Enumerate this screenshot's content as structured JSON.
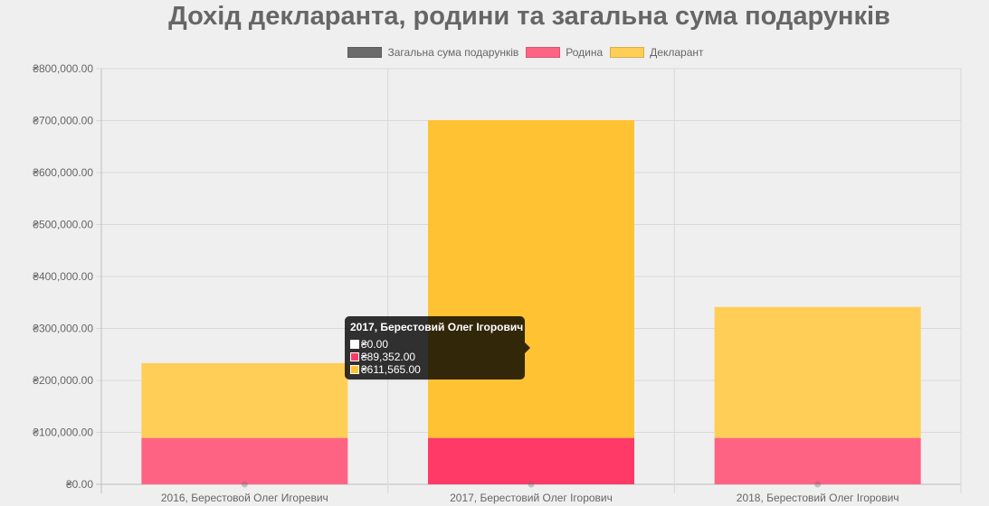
{
  "chart_data": {
    "type": "bar",
    "stacked": true,
    "title": "Дохід декларанта, родини та загальна сума подарунків",
    "categories": [
      "2016, Берестовой Олег Игоревич",
      "2017, Берестовий Олег Ігорович",
      "2018, Берестовий Олег Ігорович"
    ],
    "series": [
      {
        "name": "Загальна сума подарунків",
        "color": "#6b6b6b",
        "values": [
          0,
          0,
          0
        ]
      },
      {
        "name": "Родина",
        "color": "#ff6384",
        "values": [
          89352,
          89352,
          89352
        ]
      },
      {
        "name": "Декларант",
        "color": "#ffce56",
        "values": [
          144000,
          611565,
          252000
        ]
      }
    ],
    "ylim": [
      0,
      800000
    ],
    "yticks": [
      0,
      100000,
      200000,
      300000,
      400000,
      500000,
      600000,
      700000,
      800000
    ],
    "ytick_labels": [
      "₴0.00",
      "₴100,000.00",
      "₴200,000.00",
      "₴300,000.00",
      "₴400,000.00",
      "₴500,000.00",
      "₴600,000.00",
      "₴700,000.00",
      "₴800,000.00"
    ],
    "legend": "top-center",
    "grid": true,
    "highlighted_category": 1,
    "highlight_colors": [
      "#6b6b6b",
      "#ff3a66",
      "#ffc233"
    ]
  },
  "tooltip": {
    "title": "2017, Берестовий Олег Ігорович",
    "rows": [
      {
        "color": "#ffffff",
        "text": "₴0.00"
      },
      {
        "color": "#ff3a66",
        "text": "₴89,352.00"
      },
      {
        "color": "#ffc233",
        "text": "₴611,565.00"
      }
    ]
  }
}
